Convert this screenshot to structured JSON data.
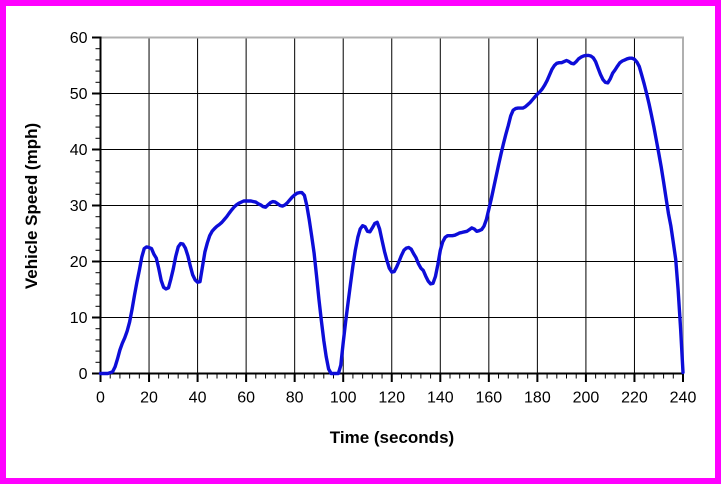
{
  "figure": {
    "border_color": "#ff00ff",
    "background_color": "#ffffff",
    "gridline_color": "#000000",
    "frame_top_right_color": "#b0b0b0",
    "axis_color": "#000000",
    "tick_label_color": "#000000"
  },
  "chart_data": {
    "type": "line",
    "title": "",
    "xlabel": "Time (seconds)",
    "ylabel": "Vehicle Speed (mph)",
    "xlim": [
      0,
      240
    ],
    "ylim": [
      0,
      60
    ],
    "x_major_ticks": [
      0,
      20,
      40,
      60,
      80,
      100,
      120,
      140,
      160,
      180,
      200,
      220,
      240
    ],
    "x_minor_step": 4,
    "y_major_ticks": [
      0,
      10,
      20,
      30,
      40,
      50,
      60
    ],
    "y_minor_step": 2,
    "grid": true,
    "legend_position": "none",
    "series": [
      {
        "name": "vehicle-speed",
        "color": "#0d0dd8",
        "points": [
          [
            0,
            0
          ],
          [
            3,
            0
          ],
          [
            5,
            0.3
          ],
          [
            6,
            1.2
          ],
          [
            7,
            2.6
          ],
          [
            8,
            4.2
          ],
          [
            9,
            5.4
          ],
          [
            10,
            6.4
          ],
          [
            11,
            7.6
          ],
          [
            12,
            9.2
          ],
          [
            13,
            11.5
          ],
          [
            14,
            14
          ],
          [
            15,
            16.3
          ],
          [
            16,
            18.4
          ],
          [
            17,
            20.8
          ],
          [
            18,
            22.3
          ],
          [
            19,
            22.6
          ],
          [
            20,
            22.5
          ],
          [
            21,
            22.3
          ],
          [
            22,
            21.3
          ],
          [
            23,
            20.6
          ],
          [
            24,
            18.7
          ],
          [
            25,
            16.6
          ],
          [
            26,
            15.4
          ],
          [
            27,
            15.1
          ],
          [
            28,
            15.3
          ],
          [
            29,
            16.9
          ],
          [
            30,
            18.7
          ],
          [
            31,
            20.9
          ],
          [
            32,
            22.6
          ],
          [
            33,
            23.2
          ],
          [
            34,
            23.1
          ],
          [
            35,
            22.4
          ],
          [
            36,
            21
          ],
          [
            37,
            19.2
          ],
          [
            38,
            17.6
          ],
          [
            39,
            16.7
          ],
          [
            40,
            16.3
          ],
          [
            41,
            16.4
          ],
          [
            42,
            19
          ],
          [
            43,
            21.7
          ],
          [
            44,
            23.3
          ],
          [
            45,
            24.6
          ],
          [
            46,
            25.4
          ],
          [
            47,
            25.9
          ],
          [
            48,
            26.3
          ],
          [
            49,
            26.6
          ],
          [
            50,
            27
          ],
          [
            51,
            27.5
          ],
          [
            52,
            28
          ],
          [
            53,
            28.6
          ],
          [
            54,
            29.2
          ],
          [
            55,
            29.7
          ],
          [
            56,
            30.1
          ],
          [
            57,
            30.4
          ],
          [
            58,
            30.6
          ],
          [
            59,
            30.8
          ],
          [
            60,
            30.8
          ],
          [
            61,
            30.8
          ],
          [
            62,
            30.8
          ],
          [
            63,
            30.7
          ],
          [
            64,
            30.6
          ],
          [
            65,
            30.3
          ],
          [
            66,
            30.1
          ],
          [
            67,
            29.8
          ],
          [
            68,
            29.7
          ],
          [
            69,
            30.1
          ],
          [
            70,
            30.5
          ],
          [
            71,
            30.7
          ],
          [
            72,
            30.6
          ],
          [
            73,
            30.3
          ],
          [
            74,
            30
          ],
          [
            75,
            29.9
          ],
          [
            76,
            30.1
          ],
          [
            77,
            30.5
          ],
          [
            78,
            31
          ],
          [
            79,
            31.5
          ],
          [
            80,
            31.9
          ],
          [
            81,
            32.2
          ],
          [
            82,
            32.3
          ],
          [
            83,
            32.3
          ],
          [
            84,
            31.8
          ],
          [
            85,
            30
          ],
          [
            86,
            27.5
          ],
          [
            87,
            24.5
          ],
          [
            88,
            21.5
          ],
          [
            89,
            17.5
          ],
          [
            90,
            13.3
          ],
          [
            91,
            9.4
          ],
          [
            92,
            5.9
          ],
          [
            93,
            3
          ],
          [
            94,
            0.8
          ],
          [
            95,
            0
          ],
          [
            98,
            0
          ],
          [
            99,
            1.5
          ],
          [
            100,
            5.5
          ],
          [
            101,
            9.2
          ],
          [
            102,
            12.7
          ],
          [
            103,
            16
          ],
          [
            104,
            19.2
          ],
          [
            105,
            22
          ],
          [
            106,
            24.3
          ],
          [
            107,
            25.8
          ],
          [
            108,
            26.4
          ],
          [
            109,
            26.2
          ],
          [
            110,
            25.4
          ],
          [
            111,
            25.3
          ],
          [
            112,
            26
          ],
          [
            113,
            26.8
          ],
          [
            114,
            27
          ],
          [
            115,
            25.8
          ],
          [
            116,
            23.8
          ],
          [
            117,
            21.8
          ],
          [
            118,
            20.2
          ],
          [
            119,
            18.8
          ],
          [
            120,
            18.1
          ],
          [
            121,
            18.2
          ],
          [
            122,
            19
          ],
          [
            123,
            20
          ],
          [
            124,
            21.1
          ],
          [
            125,
            22
          ],
          [
            126,
            22.4
          ],
          [
            127,
            22.5
          ],
          [
            128,
            22.2
          ],
          [
            129,
            21.4
          ],
          [
            130,
            20.7
          ],
          [
            131,
            19.6
          ],
          [
            132,
            18.8
          ],
          [
            133,
            18.4
          ],
          [
            134,
            17.4
          ],
          [
            135,
            16.5
          ],
          [
            136,
            16
          ],
          [
            137,
            16.1
          ],
          [
            138,
            17.3
          ],
          [
            139,
            19.5
          ],
          [
            140,
            22
          ],
          [
            141,
            23.5
          ],
          [
            142,
            24.3
          ],
          [
            143,
            24.6
          ],
          [
            144,
            24.6
          ],
          [
            145,
            24.6
          ],
          [
            146,
            24.7
          ],
          [
            147,
            24.9
          ],
          [
            148,
            25.1
          ],
          [
            149,
            25.2
          ],
          [
            150,
            25.3
          ],
          [
            151,
            25.4
          ],
          [
            152,
            25.7
          ],
          [
            153,
            26
          ],
          [
            154,
            25.8
          ],
          [
            155,
            25.4
          ],
          [
            156,
            25.5
          ],
          [
            157,
            25.7
          ],
          [
            158,
            26.3
          ],
          [
            159,
            27.5
          ],
          [
            160,
            29.3
          ],
          [
            161,
            31.2
          ],
          [
            162,
            33.2
          ],
          [
            163,
            35.2
          ],
          [
            164,
            37.2
          ],
          [
            165,
            39.2
          ],
          [
            166,
            41
          ],
          [
            167,
            42.7
          ],
          [
            168,
            44.3
          ],
          [
            169,
            46
          ],
          [
            170,
            47
          ],
          [
            171,
            47.3
          ],
          [
            172,
            47.4
          ],
          [
            173,
            47.4
          ],
          [
            174,
            47.4
          ],
          [
            175,
            47.6
          ],
          [
            176,
            48
          ],
          [
            177,
            48.4
          ],
          [
            178,
            48.9
          ],
          [
            179,
            49.4
          ],
          [
            180,
            49.9
          ],
          [
            181,
            50.3
          ],
          [
            182,
            50.8
          ],
          [
            183,
            51.5
          ],
          [
            184,
            52.3
          ],
          [
            185,
            53.3
          ],
          [
            186,
            54.3
          ],
          [
            187,
            55
          ],
          [
            188,
            55.4
          ],
          [
            189,
            55.5
          ],
          [
            190,
            55.5
          ],
          [
            191,
            55.7
          ],
          [
            192,
            55.9
          ],
          [
            193,
            55.7
          ],
          [
            194,
            55.4
          ],
          [
            195,
            55.3
          ],
          [
            196,
            55.7
          ],
          [
            197,
            56.2
          ],
          [
            198,
            56.5
          ],
          [
            199,
            56.7
          ],
          [
            200,
            56.8
          ],
          [
            201,
            56.8
          ],
          [
            202,
            56.7
          ],
          [
            203,
            56.4
          ],
          [
            204,
            55.7
          ],
          [
            205,
            54.5
          ],
          [
            206,
            53.4
          ],
          [
            207,
            52.5
          ],
          [
            208,
            52
          ],
          [
            209,
            51.9
          ],
          [
            210,
            52.6
          ],
          [
            211,
            53.6
          ],
          [
            212,
            54.2
          ],
          [
            213,
            54.9
          ],
          [
            214,
            55.5
          ],
          [
            215,
            55.8
          ],
          [
            216,
            56
          ],
          [
            217,
            56.2
          ],
          [
            218,
            56.3
          ],
          [
            219,
            56.3
          ],
          [
            220,
            56.1
          ],
          [
            221,
            55.6
          ],
          [
            222,
            54.8
          ],
          [
            223,
            53.3
          ],
          [
            224,
            51.7
          ],
          [
            225,
            50
          ],
          [
            226,
            48.2
          ],
          [
            227,
            46.2
          ],
          [
            228,
            44
          ],
          [
            229,
            41.7
          ],
          [
            230,
            39.4
          ],
          [
            231,
            36.9
          ],
          [
            232,
            34.2
          ],
          [
            233,
            31.4
          ],
          [
            234,
            28.6
          ],
          [
            235,
            26.3
          ],
          [
            236,
            23.4
          ],
          [
            237,
            20.4
          ],
          [
            238,
            15
          ],
          [
            239,
            8
          ],
          [
            240,
            0.2
          ]
        ]
      }
    ]
  }
}
